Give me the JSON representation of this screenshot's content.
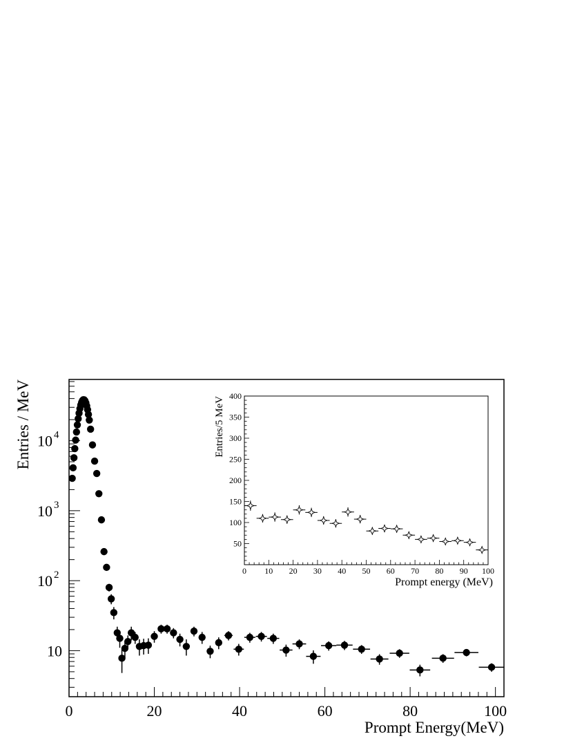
{
  "chart_data": [
    {
      "type": "scatter",
      "xlabel": "Prompt Energy(MeV)",
      "ylabel": "Entries / MeV",
      "xlim": [
        0,
        102
      ],
      "ylim": [
        2.2,
        75000
      ],
      "yscale": "log",
      "x_ticks": [
        "0",
        "20",
        "40",
        "60",
        "80",
        "100"
      ],
      "y_ticks": [
        {
          "value": 10,
          "base": "10",
          "exp": ""
        },
        {
          "value": 100,
          "base": "10",
          "exp": "2"
        },
        {
          "value": 1000,
          "base": "10",
          "exp": "3"
        },
        {
          "value": 10000,
          "base": "10",
          "exp": "4"
        }
      ],
      "series": [
        {
          "marker": "filled-circle",
          "points": [
            {
              "x": 0.75,
              "y": 2900
            },
            {
              "x": 0.95,
              "y": 4100
            },
            {
              "x": 1.15,
              "y": 5700
            },
            {
              "x": 1.35,
              "y": 7700
            },
            {
              "x": 1.55,
              "y": 10200
            },
            {
              "x": 1.75,
              "y": 13300
            },
            {
              "x": 1.95,
              "y": 16800
            },
            {
              "x": 2.15,
              "y": 20600
            },
            {
              "x": 2.35,
              "y": 24700
            },
            {
              "x": 2.55,
              "y": 28700
            },
            {
              "x": 2.75,
              "y": 32300
            },
            {
              "x": 2.95,
              "y": 35300
            },
            {
              "x": 3.15,
              "y": 37400
            },
            {
              "x": 3.35,
              "y": 38500
            },
            {
              "x": 3.55,
              "y": 38400
            },
            {
              "x": 3.75,
              "y": 37100
            },
            {
              "x": 3.95,
              "y": 34700
            },
            {
              "x": 4.15,
              "y": 31500
            },
            {
              "x": 4.35,
              "y": 27700
            },
            {
              "x": 4.55,
              "y": 23700
            },
            {
              "x": 4.75,
              "y": 19700
            },
            {
              "x": 5.05,
              "y": 14600
            },
            {
              "x": 5.5,
              "y": 8700
            },
            {
              "x": 6.0,
              "y": 5100
            },
            {
              "x": 6.5,
              "y": 3400
            },
            {
              "x": 7.0,
              "y": 1750
            },
            {
              "x": 7.6,
              "y": 740
            },
            {
              "x": 8.2,
              "y": 260
            },
            {
              "x": 8.8,
              "y": 155
            },
            {
              "x": 9.4,
              "y": 80,
              "yerr_lo": 10,
              "yerr_hi": 10
            },
            {
              "x": 9.9,
              "y": 55,
              "yerr_lo": 9,
              "yerr_hi": 9
            },
            {
              "x": 10.5,
              "y": 35,
              "yerr_lo": 7,
              "yerr_hi": 7
            },
            {
              "x": 11.3,
              "y": 18,
              "yerr_lo": 4,
              "yerr_hi": 4
            },
            {
              "x": 11.9,
              "y": 15,
              "yerr_lo": 4,
              "yerr_hi": 4
            },
            {
              "x": 12.4,
              "y": 7.8,
              "yerr_lo": 3,
              "yerr_hi": 3
            },
            {
              "x": 13.1,
              "y": 10.8,
              "yerr_lo": 3,
              "yerr_hi": 3
            },
            {
              "x": 13.8,
              "y": 13.5,
              "yerr_lo": 3,
              "yerr_hi": 3
            },
            {
              "x": 14.6,
              "y": 18,
              "yerr_lo": 4,
              "yerr_hi": 4
            },
            {
              "x": 15.5,
              "y": 15.5,
              "yerr_lo": 3,
              "yerr_hi": 3
            },
            {
              "x": 16.5,
              "y": 11.5,
              "yerr_lo": 3,
              "yerr_hi": 3
            },
            {
              "x": 17.5,
              "y": 11.8,
              "yerr_lo": 3,
              "yerr_hi": 3
            },
            {
              "x": 18.6,
              "y": 12,
              "yerr_lo": 3,
              "yerr_hi": 3
            },
            {
              "x": 20.0,
              "y": 16,
              "yerr_lo": 3,
              "yerr_hi": 3
            },
            {
              "x": 21.6,
              "y": 20.5,
              "yerr_lo": 3,
              "yerr_hi": 3
            },
            {
              "x": 23.0,
              "y": 20.5,
              "yerr_lo": 3,
              "yerr_hi": 3
            },
            {
              "x": 24.5,
              "y": 18,
              "yerr_lo": 3,
              "yerr_hi": 3
            },
            {
              "x": 26.0,
              "y": 14.5,
              "yerr_lo": 3,
              "yerr_hi": 3
            },
            {
              "x": 27.5,
              "y": 11.5,
              "yerr_lo": 3,
              "yerr_hi": 3
            },
            {
              "x": 29.3,
              "y": 19,
              "yerr_lo": 3,
              "yerr_hi": 3
            },
            {
              "x": 31.2,
              "y": 15.5,
              "yerr_lo": 3,
              "yerr_hi": 3
            },
            {
              "x": 33.1,
              "y": 9.8,
              "yerr_lo": 2,
              "yerr_hi": 2
            },
            {
              "x": 35.1,
              "y": 13,
              "yerr_lo": 2.5,
              "yerr_hi": 2.5
            },
            {
              "x": 37.4,
              "y": 16.5,
              "yerr_lo": 2.5,
              "yerr_hi": 2.5,
              "xerr": 1.0
            },
            {
              "x": 39.8,
              "y": 10.5,
              "yerr_lo": 2,
              "yerr_hi": 2,
              "xerr": 1.2
            },
            {
              "x": 42.4,
              "y": 15.5,
              "yerr_lo": 2.5,
              "yerr_hi": 2.5,
              "xerr": 1.3
            },
            {
              "x": 45.1,
              "y": 16,
              "yerr_lo": 2.5,
              "yerr_hi": 2.5,
              "xerr": 1.3
            },
            {
              "x": 47.9,
              "y": 15,
              "yerr_lo": 2.5,
              "yerr_hi": 2.5,
              "xerr": 1.4
            },
            {
              "x": 50.9,
              "y": 10.2,
              "yerr_lo": 2,
              "yerr_hi": 2,
              "xerr": 1.5
            },
            {
              "x": 54.0,
              "y": 12.5,
              "yerr_lo": 2,
              "yerr_hi": 2,
              "xerr": 1.6
            },
            {
              "x": 57.3,
              "y": 8.3,
              "yerr_lo": 1.8,
              "yerr_hi": 1.8,
              "xerr": 1.7
            },
            {
              "x": 60.9,
              "y": 11.8,
              "yerr_lo": 1.8,
              "yerr_hi": 1.8,
              "xerr": 1.8
            },
            {
              "x": 64.6,
              "y": 12,
              "yerr_lo": 1.8,
              "yerr_hi": 1.8,
              "xerr": 1.9
            },
            {
              "x": 68.6,
              "y": 10.5,
              "yerr_lo": 1.5,
              "yerr_hi": 1.5,
              "xerr": 2.0
            },
            {
              "x": 72.8,
              "y": 7.6,
              "yerr_lo": 1.3,
              "yerr_hi": 1.3,
              "xerr": 2.1
            },
            {
              "x": 77.5,
              "y": 9.2,
              "yerr_lo": 1.3,
              "yerr_hi": 1.3,
              "xerr": 2.3
            },
            {
              "x": 82.3,
              "y": 5.3,
              "yerr_lo": 1.0,
              "yerr_hi": 1.0,
              "xerr": 2.4
            },
            {
              "x": 87.7,
              "y": 7.8,
              "yerr_lo": 1.1,
              "yerr_hi": 1.1,
              "xerr": 2.6
            },
            {
              "x": 93.2,
              "y": 9.4,
              "yerr_lo": 1.1,
              "yerr_hi": 1.1,
              "xerr": 2.8
            },
            {
              "x": 99.1,
              "y": 5.8,
              "yerr_lo": 0.8,
              "yerr_hi": 0.8,
              "xerr": 3.0
            }
          ]
        }
      ]
    },
    {
      "type": "scatter",
      "xlabel": "Prompt energy (MeV)",
      "ylabel": "Entries/5 MeV",
      "xlim": [
        0,
        100
      ],
      "ylim": [
        0,
        400
      ],
      "x_ticks": [
        "0",
        "10",
        "20",
        "30",
        "40",
        "50",
        "60",
        "70",
        "80",
        "90",
        "100"
      ],
      "y_ticks": [
        "50",
        "100",
        "150",
        "200",
        "250",
        "300",
        "350",
        "400"
      ],
      "series": [
        {
          "marker": "open-star",
          "points": [
            {
              "x": 2.5,
              "y": 140,
              "yerr": 12
            },
            {
              "x": 7.5,
              "y": 110,
              "yerr": 10
            },
            {
              "x": 12.5,
              "y": 113,
              "yerr": 11
            },
            {
              "x": 17.5,
              "y": 107,
              "yerr": 10
            },
            {
              "x": 22.5,
              "y": 130,
              "yerr": 11
            },
            {
              "x": 27.5,
              "y": 124,
              "yerr": 11
            },
            {
              "x": 32.5,
              "y": 105,
              "yerr": 10
            },
            {
              "x": 37.5,
              "y": 98,
              "yerr": 10
            },
            {
              "x": 42.5,
              "y": 125,
              "yerr": 11
            },
            {
              "x": 47.5,
              "y": 108,
              "yerr": 10
            },
            {
              "x": 52.5,
              "y": 80,
              "yerr": 9
            },
            {
              "x": 57.5,
              "y": 86,
              "yerr": 9
            },
            {
              "x": 62.5,
              "y": 85,
              "yerr": 9
            },
            {
              "x": 67.5,
              "y": 70,
              "yerr": 8
            },
            {
              "x": 72.5,
              "y": 60,
              "yerr": 8
            },
            {
              "x": 77.5,
              "y": 63,
              "yerr": 8
            },
            {
              "x": 82.5,
              "y": 55,
              "yerr": 7
            },
            {
              "x": 87.5,
              "y": 57,
              "yerr": 7
            },
            {
              "x": 92.5,
              "y": 53,
              "yerr": 7
            },
            {
              "x": 97.5,
              "y": 35,
              "yerr": 6
            }
          ]
        }
      ]
    }
  ]
}
